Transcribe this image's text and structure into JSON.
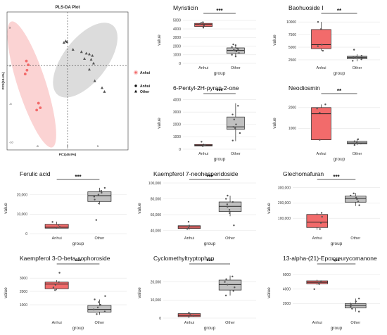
{
  "pls": {
    "title": "PLS-DA Plot",
    "xlabel": "PC1(46.9%)",
    "ylabel": "PC2(18.4%)",
    "xlim": [
      -10,
      10
    ],
    "ylim": [
      -11,
      7
    ],
    "xticks": [
      -5,
      0,
      5
    ],
    "yticks": [
      5,
      0,
      -5,
      -10
    ],
    "legend_title_top": "",
    "legend_color_label": "Anhui",
    "legend_shape_title": "",
    "legend_shapes": [
      {
        "label": "Anhui",
        "shape": "circle"
      },
      {
        "label": "Other",
        "shape": "triangle"
      }
    ],
    "colors": {
      "anhui": "#f26b6b",
      "other": "#555555",
      "anhui_ellipse": "#fbd3d3",
      "other_ellipse": "#dcdcdc"
    },
    "series": [
      {
        "name": "Anhui",
        "shape": "circle",
        "points": [
          [
            -6.8,
            0.6
          ],
          [
            -6.5,
            0.1
          ],
          [
            -6.7,
            -0.6
          ],
          [
            -7.0,
            -1.1
          ],
          [
            -4.8,
            -4.9
          ],
          [
            -4.5,
            -5.5
          ],
          [
            -5.1,
            -5.8
          ]
        ]
      },
      {
        "name": "Other",
        "shape": "triangle",
        "points": [
          [
            -0.6,
            3.0
          ],
          [
            -0.3,
            3.2
          ],
          [
            -0.1,
            3.1
          ],
          [
            0.9,
            2.1
          ],
          [
            2.3,
            1.8
          ],
          [
            3.1,
            1.6
          ],
          [
            3.6,
            1.5
          ],
          [
            4.1,
            1.3
          ],
          [
            2.8,
            0.9
          ],
          [
            3.9,
            0.8
          ],
          [
            4.3,
            0.3
          ],
          [
            3.6,
            -0.5
          ],
          [
            4.5,
            -2.0
          ],
          [
            5.7,
            -2.9
          ],
          [
            6.1,
            -3.4
          ]
        ]
      }
    ]
  },
  "chart_data": [
    {
      "type": "box",
      "title": "Myristicin",
      "xlabel": "group",
      "ylabel": "value",
      "categories": [
        "Anhui",
        "Other"
      ],
      "significance": "***",
      "ylim": [
        0,
        5400
      ],
      "yticks": [
        0,
        1000,
        2000,
        3000,
        4000,
        5000
      ],
      "ytick_labels": [
        "0",
        "1000",
        "2000",
        "3000",
        "4000",
        "5000"
      ],
      "boxes": [
        {
          "group": "Anhui",
          "min": 4150,
          "q1": 4280,
          "median": 4520,
          "q3": 4650,
          "max": 4780,
          "points": [
            4150,
            4400,
            4520,
            4700,
            4780
          ]
        },
        {
          "group": "Other",
          "min": 750,
          "q1": 1150,
          "median": 1500,
          "q3": 1800,
          "max": 2200,
          "points": [
            800,
            1000,
            1200,
            1400,
            1500,
            1550,
            1650,
            1750,
            1900,
            2100,
            2200
          ]
        }
      ]
    },
    {
      "type": "box",
      "title": "Baohuoside I",
      "xlabel": "group",
      "ylabel": "value",
      "categories": [
        "Anhui",
        "Other"
      ],
      "significance": "**",
      "ylim": [
        1800,
        11000
      ],
      "yticks": [
        2500,
        5000,
        7500,
        10000
      ],
      "ytick_labels": [
        "2500",
        "5000",
        "7500",
        "10000"
      ],
      "boxes": [
        {
          "group": "Anhui",
          "min": 4300,
          "q1": 4700,
          "median": 5500,
          "q3": 8500,
          "max": 10000,
          "points": [
            4300,
            5200,
            5500,
            8600,
            10000
          ]
        },
        {
          "group": "Other",
          "min": 2200,
          "q1": 2700,
          "median": 3000,
          "q3": 3200,
          "max": 3600,
          "points": [
            2300,
            2600,
            2800,
            3000,
            3100,
            3300,
            4500
          ]
        }
      ]
    },
    {
      "type": "box",
      "title": "6-Pentyl-2H-pyran-2-one",
      "xlabel": "group",
      "ylabel": "value",
      "categories": [
        "Anhui",
        "Other"
      ],
      "significance": "***",
      "ylim": [
        0,
        4200
      ],
      "yticks": [
        0,
        1000,
        2000,
        3000,
        4000
      ],
      "ytick_labels": [
        "0",
        "1000",
        "2000",
        "3000",
        "4000"
      ],
      "boxes": [
        {
          "group": "Anhui",
          "min": 220,
          "q1": 260,
          "median": 320,
          "q3": 380,
          "max": 450,
          "points": [
            250,
            300,
            350,
            600
          ]
        },
        {
          "group": "Other",
          "min": 650,
          "q1": 1600,
          "median": 1800,
          "q3": 2600,
          "max": 3700,
          "points": [
            700,
            1300,
            1700,
            1800,
            2000,
            2400,
            2800,
            3500
          ]
        }
      ]
    },
    {
      "type": "box",
      "title": "Neodiosmin",
      "xlabel": "group",
      "ylabel": "value",
      "categories": [
        "Anhui",
        "Other"
      ],
      "significance": "**",
      "ylim": [
        0,
        2500
      ],
      "yticks": [
        1000,
        2000
      ],
      "ytick_labels": [
        "1000",
        "2000"
      ],
      "boxes": [
        {
          "group": "Anhui",
          "min": 450,
          "q1": 450,
          "median": 1700,
          "q3": 2000,
          "max": 2150,
          "points": [
            450,
            1750,
            1950,
            2150
          ]
        },
        {
          "group": "Other",
          "min": 200,
          "q1": 250,
          "median": 300,
          "q3": 380,
          "max": 480,
          "points": [
            200,
            270,
            320,
            380,
            480
          ]
        }
      ]
    },
    {
      "type": "box",
      "title": "Ferulic acid",
      "xlabel": "group",
      "ylabel": "value",
      "categories": [
        "Anhui",
        "Other"
      ],
      "significance": "***",
      "ylim": [
        0,
        26000
      ],
      "yticks": [
        0,
        10000,
        20000
      ],
      "ytick_labels": [
        "0",
        "10,000",
        "20,000"
      ],
      "boxes": [
        {
          "group": "Anhui",
          "min": 2600,
          "q1": 2800,
          "median": 3300,
          "q3": 4800,
          "max": 6200,
          "points": [
            3000,
            3500,
            4500,
            6000
          ]
        },
        {
          "group": "Other",
          "min": 15000,
          "q1": 16500,
          "median": 19500,
          "q3": 21500,
          "max": 23500,
          "points": [
            7000,
            15500,
            17500,
            19000,
            20000,
            21000,
            22000,
            23500
          ]
        }
      ]
    },
    {
      "type": "box",
      "title": "Kaempferol 7-neohesperidoside",
      "xlabel": "group",
      "ylabel": "value",
      "categories": [
        "Anhui",
        "Other"
      ],
      "significance": "***",
      "ylim": [
        36000,
        100000
      ],
      "yticks": [
        40000,
        60000,
        80000,
        100000
      ],
      "ytick_labels": [
        "40,000",
        "60,000",
        "80,000",
        "100,000"
      ],
      "boxes": [
        {
          "group": "Anhui",
          "min": 41000,
          "q1": 42500,
          "median": 44500,
          "q3": 46000,
          "max": 47500,
          "points": [
            42000,
            44000,
            46000,
            51000
          ]
        },
        {
          "group": "Other",
          "min": 58000,
          "q1": 64000,
          "median": 70500,
          "q3": 76000,
          "max": 84000,
          "points": [
            46500,
            62000,
            66000,
            70000,
            73000,
            76000,
            80000,
            84000
          ]
        }
      ]
    },
    {
      "type": "box",
      "title": "Glechomafuran",
      "xlabel": "group",
      "ylabel": "value",
      "categories": [
        "Anhui",
        "Other"
      ],
      "significance": "***",
      "ylim": [
        0,
        330000
      ],
      "yticks": [
        100000,
        200000,
        300000
      ],
      "ytick_labels": [
        "100,000",
        "200,000",
        "300,000"
      ],
      "boxes": [
        {
          "group": "Anhui",
          "min": 25000,
          "q1": 40000,
          "median": 75000,
          "q3": 125000,
          "max": 135000,
          "points": [
            30000,
            70000,
            110000,
            135000
          ]
        },
        {
          "group": "Other",
          "min": 180000,
          "q1": 205000,
          "median": 230000,
          "q3": 245000,
          "max": 265000,
          "points": [
            185000,
            210000,
            225000,
            235000,
            248000,
            262000
          ]
        }
      ]
    },
    {
      "type": "box",
      "title": "Kaempferol 3-O-beta-sophoroside",
      "xlabel": "group",
      "ylabel": "value",
      "categories": [
        "Anhui",
        "Other"
      ],
      "significance": "***",
      "ylim": [
        0,
        3800
      ],
      "yticks": [
        1000,
        2000,
        3000
      ],
      "ytick_labels": [
        "1000",
        "2000",
        "3000"
      ],
      "boxes": [
        {
          "group": "Anhui",
          "min": 2100,
          "q1": 2200,
          "median": 2550,
          "q3": 2700,
          "max": 2850,
          "points": [
            2100,
            2300,
            2500,
            2700,
            3400
          ]
        },
        {
          "group": "Other",
          "min": 250,
          "q1": 450,
          "median": 650,
          "q3": 950,
          "max": 1400,
          "points": [
            300,
            500,
            650,
            800,
            1000,
            1200,
            1400,
            1650
          ]
        }
      ]
    },
    {
      "type": "box",
      "title": "Cyclomethyltryptophan",
      "xlabel": "group",
      "ylabel": "value",
      "categories": [
        "Anhui",
        "Other"
      ],
      "significance": "***",
      "ylim": [
        0,
        28000
      ],
      "yticks": [
        0,
        10000,
        20000
      ],
      "ytick_labels": [
        "0",
        "10,000",
        "20,000"
      ],
      "boxes": [
        {
          "group": "Anhui",
          "min": 400,
          "q1": 800,
          "median": 1500,
          "q3": 2500,
          "max": 3100,
          "points": [
            700,
            1500,
            2400,
            3000
          ]
        },
        {
          "group": "Other",
          "min": 12500,
          "q1": 15500,
          "median": 18500,
          "q3": 21000,
          "max": 23500,
          "points": [
            12500,
            15000,
            17000,
            18500,
            20000,
            21500,
            23000
          ]
        }
      ]
    },
    {
      "type": "box",
      "title": "13-alpha-(21)-Epoxyeurycomanone",
      "xlabel": "group",
      "ylabel": "value",
      "categories": [
        "Anhui",
        "Other"
      ],
      "significance": "***",
      "ylim": [
        0,
        7000
      ],
      "yticks": [
        2000,
        4000,
        6000
      ],
      "ytick_labels": [
        "2000",
        "4000",
        "6000"
      ],
      "boxes": [
        {
          "group": "Anhui",
          "min": 4600,
          "q1": 4750,
          "median": 4950,
          "q3": 5150,
          "max": 5300,
          "points": [
            4700,
            4900,
            5100,
            4000
          ]
        },
        {
          "group": "Other",
          "min": 900,
          "q1": 1400,
          "median": 1750,
          "q3": 2000,
          "max": 2700,
          "points": [
            900,
            1300,
            1600,
            1800,
            2000,
            2300,
            2700
          ]
        }
      ]
    }
  ],
  "colors": {
    "anhui_box": "#f26b6b",
    "other_box": "#c0c0c0",
    "grid": "#e6e6e6",
    "text": "#333333",
    "title": "#111111"
  }
}
